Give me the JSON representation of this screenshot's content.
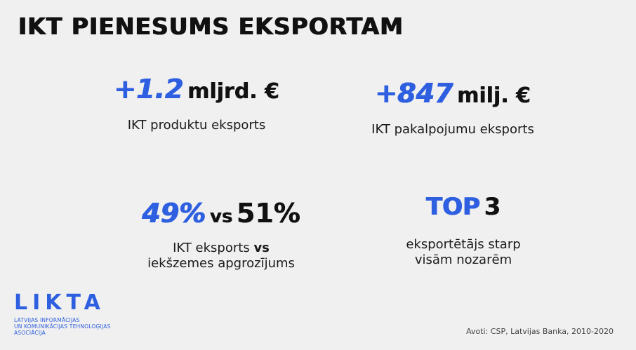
{
  "title": "IKT PIENESUMS EKSPORTAM",
  "stats": [
    {
      "value": "+1.2",
      "unit": "mljrd. €",
      "description": "IKT produktu eksports"
    },
    {
      "value": "+847",
      "unit": "milj. €",
      "description": "IKT pakalpojumu eksports"
    },
    {
      "value_a": "49%",
      "vs": "vs",
      "value_b": "51%",
      "description_line1_a": "IKT eksports",
      "description_line1_b": "vs",
      "description_line2": "iekšzemes apgrozījums"
    },
    {
      "value": "TOP",
      "rank": "3",
      "description_line1": "eksportētājs starp",
      "description_line2": "visām nozarēm"
    }
  ],
  "logo": {
    "name": "LIKTA",
    "subtitle_lines": [
      "LATVIJAS INFORMĀCIJAS",
      "UN KOMUNIKĀCIJAS TEHNOLOĢIJAS",
      "ASOCIĀCIJA"
    ]
  },
  "source": "Avoti: CSP, Latvijas Banka, 2010-2020",
  "colors": {
    "accent": "#2e5fe0",
    "background": "#f0f0f0",
    "text": "#111111"
  }
}
